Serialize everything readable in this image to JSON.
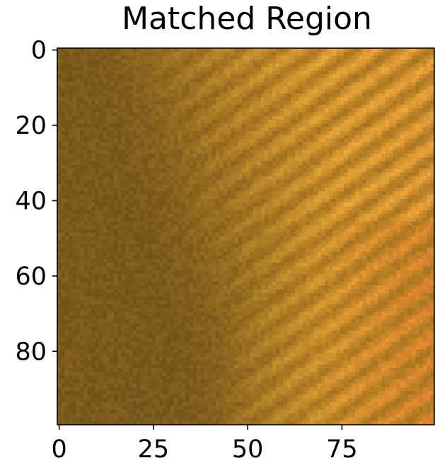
{
  "chart_data": {
    "type": "heatmap",
    "title": "Matched Region",
    "xlabel": "",
    "ylabel": "",
    "grid": false,
    "image_size": [
      100,
      100
    ],
    "xlim": [
      -0.5,
      99.5
    ],
    "ylim": [
      99.5,
      -0.5
    ],
    "x_ticks": [
      0,
      25,
      50,
      75
    ],
    "y_ticks": [
      0,
      20,
      40,
      60,
      80
    ],
    "x_tick_labels": [
      "0",
      "25",
      "50",
      "75"
    ],
    "y_tick_labels": [
      "0",
      "20",
      "40",
      "60",
      "80"
    ],
    "colors": {
      "dark_region": "#7a5a1c",
      "mid_region": "#b07a22",
      "bright_stripe": "#f2a63a",
      "yellow_stripe": "#e0b43c",
      "orange_corner": "#e8862e"
    }
  }
}
